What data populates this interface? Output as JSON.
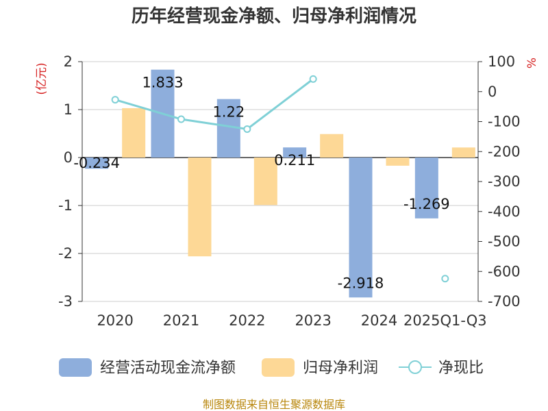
{
  "chart_data": {
    "type": "bar",
    "title": "历年经营现金净额、归母净利润情况",
    "categories": [
      "2020",
      "2021",
      "2022",
      "2023",
      "2024",
      "2025Q1-Q3"
    ],
    "left_axis": {
      "unit": "(亿元)",
      "min": -3,
      "max": 2,
      "ticks": [
        2,
        1,
        0,
        -1,
        -2,
        -3
      ]
    },
    "right_axis": {
      "unit": "%",
      "min": -700,
      "max": 100,
      "ticks": [
        100,
        0,
        -100,
        -200,
        -300,
        -400,
        -500,
        -600,
        -700
      ]
    },
    "series": [
      {
        "name": "经营活动现金流净额",
        "kind": "bar",
        "axis": "left",
        "color": "#8eaedc",
        "values": [
          -0.234,
          1.833,
          1.22,
          0.211,
          -2.918,
          -1.269
        ],
        "labels": [
          "-0.234",
          "1.833",
          "1.22",
          "0.211",
          "-2.918",
          "-1.269"
        ]
      },
      {
        "name": "归母净利润",
        "kind": "bar",
        "axis": "left",
        "color": "#fdd896",
        "values": [
          1.03,
          -2.06,
          -0.99,
          0.49,
          -0.17,
          0.21
        ]
      },
      {
        "name": "净现比",
        "kind": "line",
        "axis": "right",
        "color": "#7fd0d6",
        "values": [
          -27,
          -92,
          -125,
          42,
          null,
          -624
        ]
      }
    ],
    "grid": true,
    "legend_position": "bottom"
  },
  "source_note": "制图数据来自恒生聚源数据库"
}
